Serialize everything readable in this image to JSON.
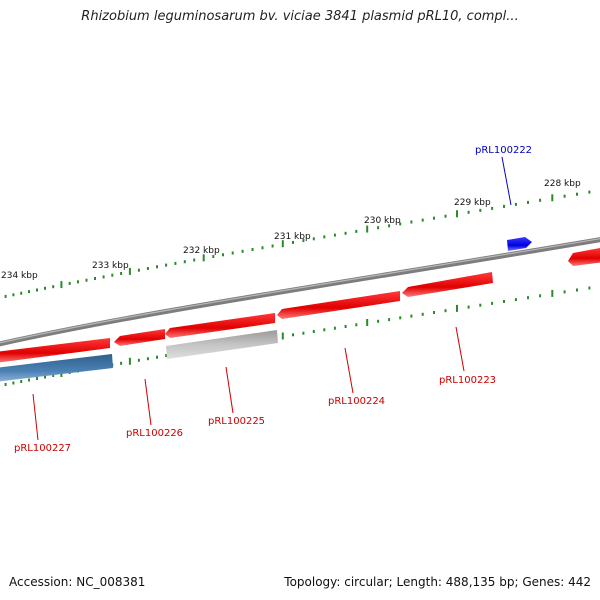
{
  "title": "Rhizobium leguminosarum bv. viciae 3841 plasmid pRL10, compl...",
  "footer": {
    "accession": "Accession: NC_008381",
    "topology": "Topology: circular; Length: 488,135 bp; Genes: 442"
  },
  "tick_labels": [
    "234 kbp",
    "233 kbp",
    "232 kbp",
    "231 kbp",
    "230 kbp",
    "229 kbp",
    "228 kbp"
  ],
  "gene_labels": [
    "pRL100222",
    "pRL100223",
    "pRL100224",
    "pRL100225",
    "pRL100226",
    "pRL100227"
  ],
  "colors": {
    "backbone": "#808080",
    "gene_reverse": "#ee1111",
    "gene_forward": "#1515e0",
    "gene_grey": "#b4b4b4",
    "gene_steel": "#4a7fb0",
    "tick_marks": "#2a8a2a",
    "label_red": "#cc0000",
    "label_blue": "#0000bb"
  }
}
